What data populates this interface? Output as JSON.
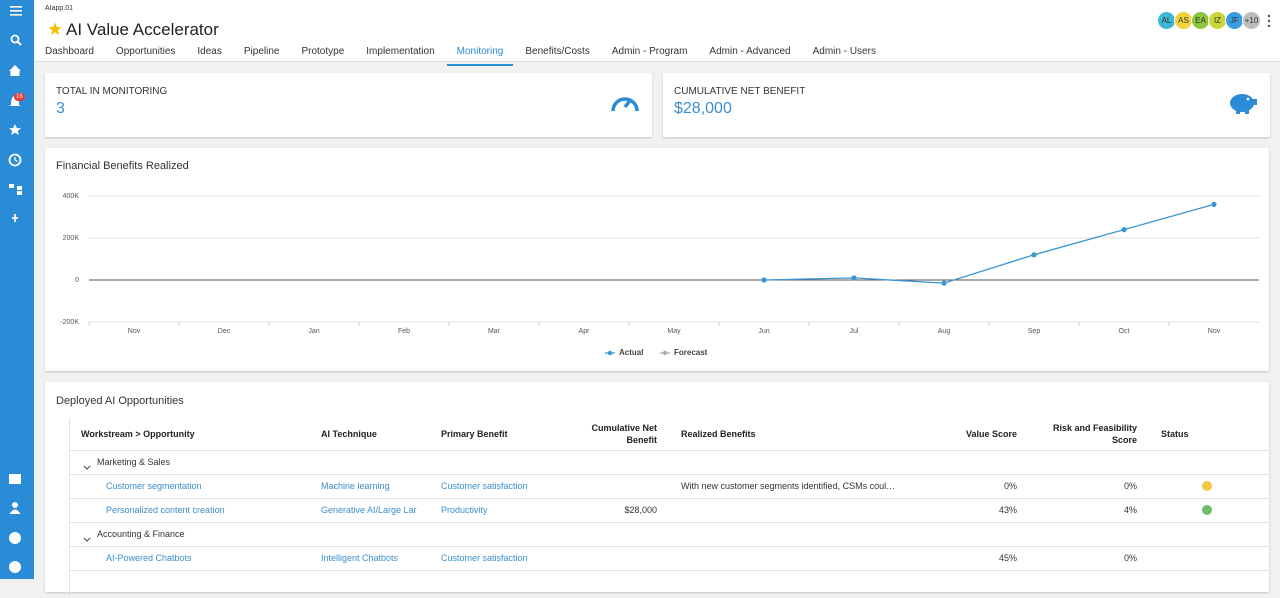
{
  "app": {
    "code": "AIapp.01",
    "title": "AI Value Accelerator",
    "notifications": "16",
    "avatars": [
      {
        "initials": "AL",
        "color": "#3fb6d6"
      },
      {
        "initials": "AS",
        "color": "#f2d43a"
      },
      {
        "initials": "EA",
        "color": "#8cc63f"
      },
      {
        "initials": "IZ",
        "color": "#c9d63a"
      },
      {
        "initials": "JF",
        "color": "#3a9fe0"
      },
      {
        "initials": "+10",
        "color": "#bdbdbd"
      }
    ]
  },
  "tabs": [
    "Dashboard",
    "Opportunities",
    "Ideas",
    "Pipeline",
    "Prototype",
    "Implementation",
    "Monitoring",
    "Benefits/Costs",
    "Admin - Program",
    "Admin - Advanced",
    "Admin - Users"
  ],
  "kpis": [
    {
      "label": "TOTAL IN MONITORING",
      "value": "3"
    },
    {
      "label": "CUMULATIVE NET BENEFIT",
      "value": "$28,000"
    }
  ],
  "chart_data": {
    "type": "line",
    "title": "Financial Benefits Realized",
    "categories": [
      "Nov",
      "Dec",
      "Jan",
      "Feb",
      "Mar",
      "Apr",
      "May",
      "Jun",
      "Jul",
      "Aug",
      "Sep",
      "Oct",
      "Nov"
    ],
    "series": [
      {
        "name": "Actual",
        "color": "#3a96d4",
        "values": [
          null,
          null,
          null,
          null,
          null,
          null,
          null,
          0,
          10000,
          -15000,
          120000,
          240000,
          360000
        ]
      },
      {
        "name": "Forecast",
        "color": "#aaaaaa",
        "values": [
          null,
          null,
          null,
          null,
          null,
          null,
          null,
          null,
          null,
          null,
          null,
          null,
          null
        ]
      }
    ],
    "ylim": [
      -200000,
      400000
    ],
    "yticks": [
      {
        "value": -200000,
        "label": "-200K"
      },
      {
        "value": 0,
        "label": "0"
      },
      {
        "value": 200000,
        "label": "200K"
      },
      {
        "value": 400000,
        "label": "400K"
      }
    ],
    "grid": true,
    "legend": "bottom"
  },
  "table": {
    "title": "Deployed AI Opportunities",
    "columns": [
      "Workstream > Opportunity",
      "AI Technique",
      "Primary Benefit",
      "Cumulative Net Benefit",
      "Realized Benefits",
      "Value Score",
      "Risk and Feasibility Score",
      "Status"
    ],
    "groups": [
      {
        "name": "Marketing & Sales",
        "rows": [
          {
            "cells": [
              "Customer segmentation",
              "Machine learning",
              "Customer satisfaction",
              null,
              "With new customer segments identified, CSMs coul…",
              "0%",
              "0%"
            ],
            "status": "#f5c842"
          },
          {
            "cells": [
              "Personalized content creation",
              "Generative AI/Large Lar",
              "Productivity",
              "$28,000",
              null,
              "43%",
              "4%"
            ],
            "status": "#6abf69"
          }
        ]
      },
      {
        "name": "Accounting & Finance",
        "rows": [
          {
            "cells": [
              "AI-Powered Chatbots",
              "Intelligent Chatbots",
              "Customer satisfaction",
              null,
              null,
              "45%",
              "0%"
            ],
            "status": null
          }
        ]
      }
    ]
  }
}
